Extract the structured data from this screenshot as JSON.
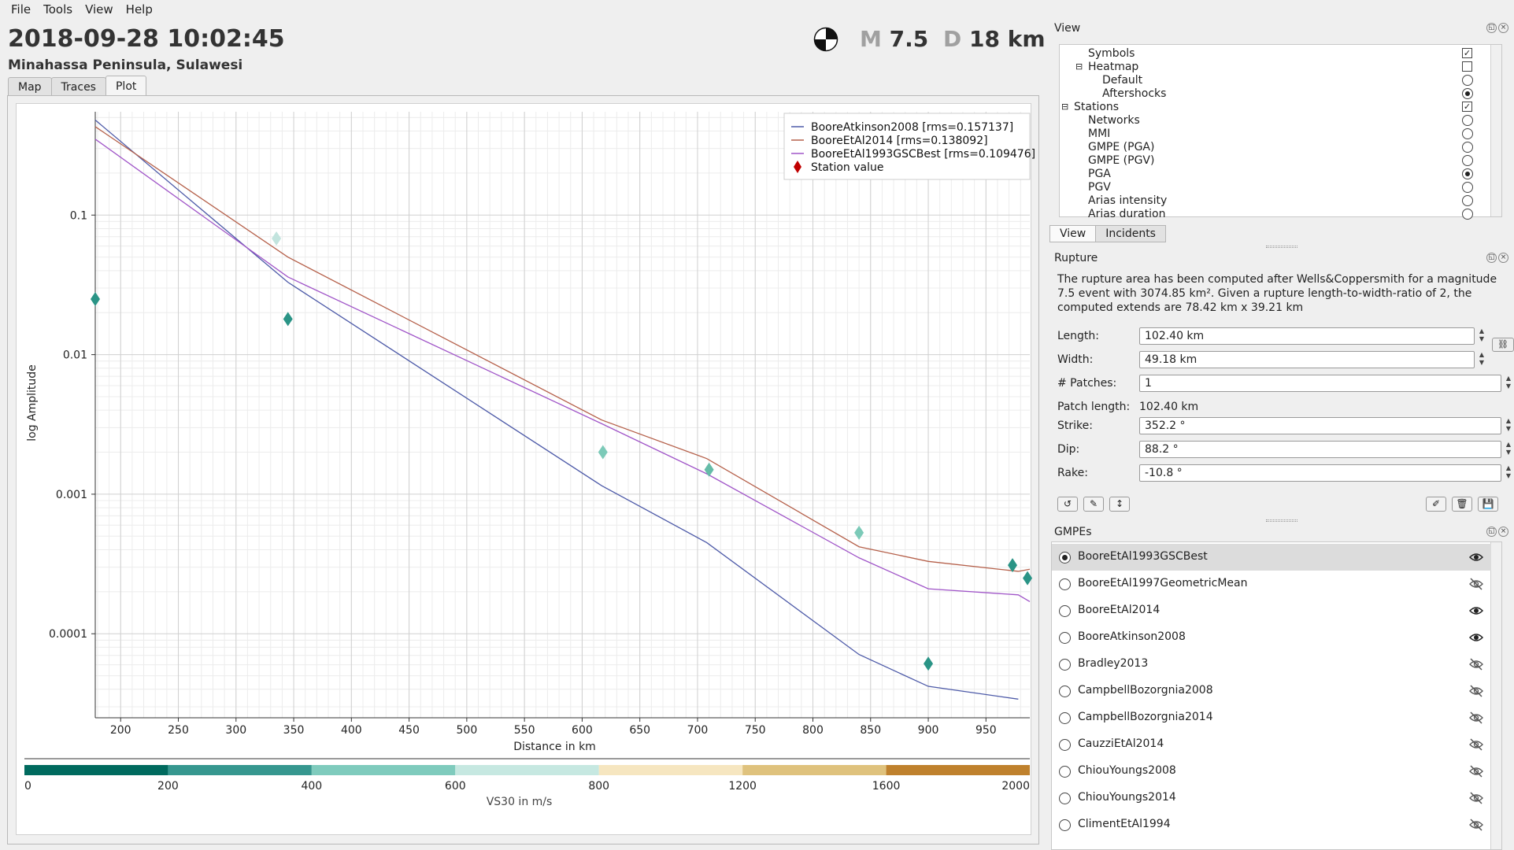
{
  "menu": [
    "File",
    "Tools",
    "View",
    "Help"
  ],
  "event": {
    "time": "2018-09-28 10:02:45",
    "region": "Minahassa Peninsula, Sulawesi",
    "mag_label": "M",
    "mag_value": "7.5",
    "depth_label": "D",
    "depth_value": "18 km"
  },
  "tabs": [
    "Map",
    "Traces",
    "Plot"
  ],
  "active_tab": "Plot",
  "chart_data": {
    "type": "line",
    "xlabel": "Distance in km",
    "ylabel": "log Amplitude",
    "yscale": "log",
    "xlim": [
      178,
      988
    ],
    "ylim": [
      2.5e-05,
      0.55
    ],
    "x_ticks": [
      200,
      250,
      300,
      350,
      400,
      450,
      500,
      550,
      600,
      650,
      700,
      750,
      800,
      850,
      900,
      950
    ],
    "y_ticks": [
      {
        "value": 0.1,
        "label": "0.1"
      },
      {
        "value": 0.01,
        "label": "0.01"
      },
      {
        "value": 0.001,
        "label": "0.001"
      },
      {
        "value": 0.0001,
        "label": "0.0001"
      }
    ],
    "grid": true,
    "legend_position": "top-right",
    "series": [
      {
        "name": "BooreAtkinson2008 [rms=0.157137]",
        "color": "#4d5aa8",
        "x": [
          178,
          345,
          617,
          708,
          840,
          900,
          978
        ],
        "y": [
          0.48,
          0.033,
          0.00115,
          0.00045,
          7.1e-05,
          4.2e-05,
          3.4e-05
        ]
      },
      {
        "name": "BooreEtAl2014 [rms=0.138092]",
        "color": "#b5604a",
        "x": [
          178,
          345,
          617,
          708,
          840,
          900,
          978,
          988
        ],
        "y": [
          0.43,
          0.05,
          0.0034,
          0.0018,
          0.00042,
          0.00033,
          0.00028,
          0.00029
        ]
      },
      {
        "name": "BooreEtAl1993GSCBest [rms=0.109476]",
        "color": "#a055c8",
        "x": [
          178,
          345,
          617,
          708,
          840,
          900,
          978,
          988
        ],
        "y": [
          0.35,
          0.036,
          0.0032,
          0.0014,
          0.00035,
          0.00021,
          0.00019,
          0.00017
        ]
      }
    ],
    "legend_station": "Station value",
    "stations": [
      {
        "x": 178,
        "y": 0.025,
        "color": "#2a9486"
      },
      {
        "x": 335,
        "y": 0.068,
        "color": "#c2e4de"
      },
      {
        "x": 345,
        "y": 0.018,
        "color": "#2a9486"
      },
      {
        "x": 618,
        "y": 0.002,
        "color": "#7ccab8"
      },
      {
        "x": 710,
        "y": 0.0015,
        "color": "#65bca8"
      },
      {
        "x": 840,
        "y": 0.00053,
        "color": "#7ccab8"
      },
      {
        "x": 900,
        "y": 6.1e-05,
        "color": "#2a9486"
      },
      {
        "x": 973,
        "y": 0.00031,
        "color": "#2a9486"
      },
      {
        "x": 986,
        "y": 0.00025,
        "color": "#2a9486"
      }
    ],
    "colorbar": {
      "label": "VS30 in m/s",
      "ticks": [
        0,
        200,
        400,
        600,
        800,
        1200,
        1600,
        2000
      ],
      "segments": [
        {
          "from": 0,
          "to": 200,
          "color": "#006a5e"
        },
        {
          "from": 200,
          "to": 400,
          "color": "#36978f"
        },
        {
          "from": 400,
          "to": 600,
          "color": "#7fcbbd"
        },
        {
          "from": 600,
          "to": 800,
          "color": "#c6e8e1"
        },
        {
          "from": 800,
          "to": 1200,
          "color": "#f6e6c0"
        },
        {
          "from": 1200,
          "to": 1600,
          "color": "#dfc27d"
        },
        {
          "from": 1600,
          "to": 2000,
          "color": "#bf812d"
        }
      ]
    }
  },
  "dock": {
    "view_title": "View",
    "tree": [
      {
        "label": "Symbols",
        "indent": 2,
        "control": "check",
        "checked": true
      },
      {
        "label": "Heatmap",
        "indent": 2,
        "control": "check",
        "checked": false,
        "expand": "⊟"
      },
      {
        "label": "Default",
        "indent": 3,
        "control": "radio",
        "checked": false
      },
      {
        "label": "Aftershocks",
        "indent": 3,
        "control": "radio",
        "checked": true
      },
      {
        "label": "Stations",
        "indent": 1,
        "control": "check",
        "checked": true,
        "expand": "⊟"
      },
      {
        "label": "Networks",
        "indent": 2,
        "control": "radio",
        "checked": false
      },
      {
        "label": "MMI",
        "indent": 2,
        "control": "radio",
        "checked": false
      },
      {
        "label": "GMPE (PGA)",
        "indent": 2,
        "control": "radio",
        "checked": false
      },
      {
        "label": "GMPE (PGV)",
        "indent": 2,
        "control": "radio",
        "checked": false
      },
      {
        "label": "PGA",
        "indent": 2,
        "control": "radio",
        "checked": true
      },
      {
        "label": "PGV",
        "indent": 2,
        "control": "radio",
        "checked": false
      },
      {
        "label": "Arias intensity",
        "indent": 2,
        "control": "radio",
        "checked": false
      },
      {
        "label": "Arias duration",
        "indent": 2,
        "control": "radio",
        "checked": false
      }
    ],
    "subtabs": [
      "View",
      "Incidents"
    ],
    "rupture_title": "Rupture",
    "rupture_desc": "The rupture area has been computed after Wells&Coppersmith for a magnitude 7.5 event with 3074.85 km². Given a rupture length-to-width-ratio of 2, the computed extends are 78.42 km x 39.21 km",
    "fields": {
      "length_label": "Length:",
      "length_value": "102.40 km",
      "width_label": "Width:",
      "width_value": "49.18 km",
      "patches_label": "# Patches:",
      "patches_value": "1",
      "patch_length_label": "Patch length:",
      "patch_length_value": "102.40 km",
      "strike_label": "Strike:",
      "strike_value": "352.2 °",
      "dip_label": "Dip:",
      "dip_value": "88.2 °",
      "rake_label": "Rake:",
      "rake_value": "-10.8 °"
    },
    "gmpe_title": "GMPEs",
    "gmpes": [
      {
        "name": "BooreEtAl1993GSCBest",
        "selected": true,
        "visible": true
      },
      {
        "name": "BooreEtAl1997GeometricMean",
        "selected": false,
        "visible": false
      },
      {
        "name": "BooreEtAl2014",
        "selected": false,
        "visible": true
      },
      {
        "name": "BooreAtkinson2008",
        "selected": false,
        "visible": true
      },
      {
        "name": "Bradley2013",
        "selected": false,
        "visible": false
      },
      {
        "name": "CampbellBozorgnia2008",
        "selected": false,
        "visible": false
      },
      {
        "name": "CampbellBozorgnia2014",
        "selected": false,
        "visible": false
      },
      {
        "name": "CauzziEtAl2014",
        "selected": false,
        "visible": false
      },
      {
        "name": "ChiouYoungs2008",
        "selected": false,
        "visible": false
      },
      {
        "name": "ChiouYoungs2014",
        "selected": false,
        "visible": false
      },
      {
        "name": "ClimentEtAl1994",
        "selected": false,
        "visible": false
      }
    ]
  }
}
